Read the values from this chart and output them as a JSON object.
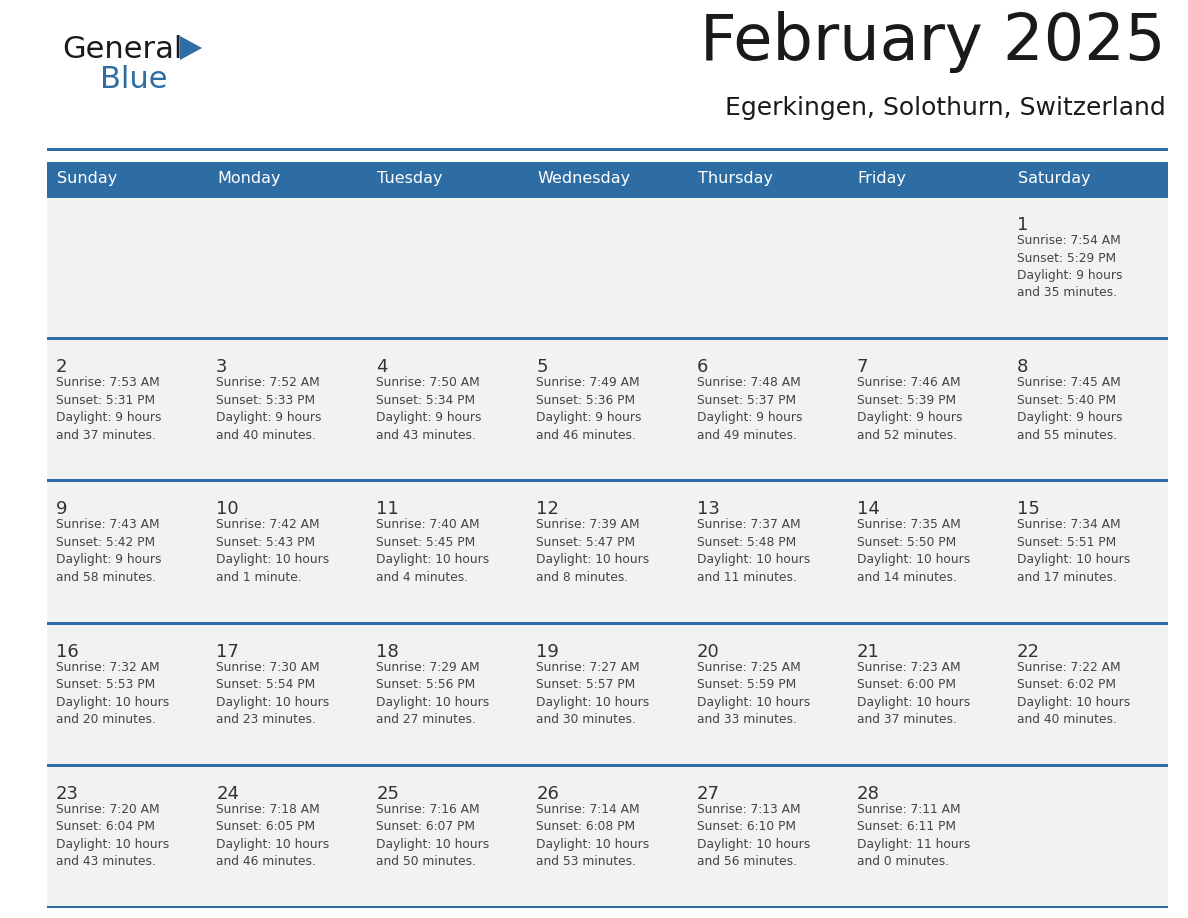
{
  "title": "February 2025",
  "subtitle": "Egerkingen, Solothurn, Switzerland",
  "header_bg": "#2E6DA4",
  "header_text": "#FFFFFF",
  "cell_bg": "#F2F2F2",
  "separator_color": "#2E6DA4",
  "text_color": "#444444",
  "days_of_week": [
    "Sunday",
    "Monday",
    "Tuesday",
    "Wednesday",
    "Thursday",
    "Friday",
    "Saturday"
  ],
  "weeks": [
    [
      {
        "day": "",
        "info": ""
      },
      {
        "day": "",
        "info": ""
      },
      {
        "day": "",
        "info": ""
      },
      {
        "day": "",
        "info": ""
      },
      {
        "day": "",
        "info": ""
      },
      {
        "day": "",
        "info": ""
      },
      {
        "day": "1",
        "info": "Sunrise: 7:54 AM\nSunset: 5:29 PM\nDaylight: 9 hours\nand 35 minutes."
      }
    ],
    [
      {
        "day": "2",
        "info": "Sunrise: 7:53 AM\nSunset: 5:31 PM\nDaylight: 9 hours\nand 37 minutes."
      },
      {
        "day": "3",
        "info": "Sunrise: 7:52 AM\nSunset: 5:33 PM\nDaylight: 9 hours\nand 40 minutes."
      },
      {
        "day": "4",
        "info": "Sunrise: 7:50 AM\nSunset: 5:34 PM\nDaylight: 9 hours\nand 43 minutes."
      },
      {
        "day": "5",
        "info": "Sunrise: 7:49 AM\nSunset: 5:36 PM\nDaylight: 9 hours\nand 46 minutes."
      },
      {
        "day": "6",
        "info": "Sunrise: 7:48 AM\nSunset: 5:37 PM\nDaylight: 9 hours\nand 49 minutes."
      },
      {
        "day": "7",
        "info": "Sunrise: 7:46 AM\nSunset: 5:39 PM\nDaylight: 9 hours\nand 52 minutes."
      },
      {
        "day": "8",
        "info": "Sunrise: 7:45 AM\nSunset: 5:40 PM\nDaylight: 9 hours\nand 55 minutes."
      }
    ],
    [
      {
        "day": "9",
        "info": "Sunrise: 7:43 AM\nSunset: 5:42 PM\nDaylight: 9 hours\nand 58 minutes."
      },
      {
        "day": "10",
        "info": "Sunrise: 7:42 AM\nSunset: 5:43 PM\nDaylight: 10 hours\nand 1 minute."
      },
      {
        "day": "11",
        "info": "Sunrise: 7:40 AM\nSunset: 5:45 PM\nDaylight: 10 hours\nand 4 minutes."
      },
      {
        "day": "12",
        "info": "Sunrise: 7:39 AM\nSunset: 5:47 PM\nDaylight: 10 hours\nand 8 minutes."
      },
      {
        "day": "13",
        "info": "Sunrise: 7:37 AM\nSunset: 5:48 PM\nDaylight: 10 hours\nand 11 minutes."
      },
      {
        "day": "14",
        "info": "Sunrise: 7:35 AM\nSunset: 5:50 PM\nDaylight: 10 hours\nand 14 minutes."
      },
      {
        "day": "15",
        "info": "Sunrise: 7:34 AM\nSunset: 5:51 PM\nDaylight: 10 hours\nand 17 minutes."
      }
    ],
    [
      {
        "day": "16",
        "info": "Sunrise: 7:32 AM\nSunset: 5:53 PM\nDaylight: 10 hours\nand 20 minutes."
      },
      {
        "day": "17",
        "info": "Sunrise: 7:30 AM\nSunset: 5:54 PM\nDaylight: 10 hours\nand 23 minutes."
      },
      {
        "day": "18",
        "info": "Sunrise: 7:29 AM\nSunset: 5:56 PM\nDaylight: 10 hours\nand 27 minutes."
      },
      {
        "day": "19",
        "info": "Sunrise: 7:27 AM\nSunset: 5:57 PM\nDaylight: 10 hours\nand 30 minutes."
      },
      {
        "day": "20",
        "info": "Sunrise: 7:25 AM\nSunset: 5:59 PM\nDaylight: 10 hours\nand 33 minutes."
      },
      {
        "day": "21",
        "info": "Sunrise: 7:23 AM\nSunset: 6:00 PM\nDaylight: 10 hours\nand 37 minutes."
      },
      {
        "day": "22",
        "info": "Sunrise: 7:22 AM\nSunset: 6:02 PM\nDaylight: 10 hours\nand 40 minutes."
      }
    ],
    [
      {
        "day": "23",
        "info": "Sunrise: 7:20 AM\nSunset: 6:04 PM\nDaylight: 10 hours\nand 43 minutes."
      },
      {
        "day": "24",
        "info": "Sunrise: 7:18 AM\nSunset: 6:05 PM\nDaylight: 10 hours\nand 46 minutes."
      },
      {
        "day": "25",
        "info": "Sunrise: 7:16 AM\nSunset: 6:07 PM\nDaylight: 10 hours\nand 50 minutes."
      },
      {
        "day": "26",
        "info": "Sunrise: 7:14 AM\nSunset: 6:08 PM\nDaylight: 10 hours\nand 53 minutes."
      },
      {
        "day": "27",
        "info": "Sunrise: 7:13 AM\nSunset: 6:10 PM\nDaylight: 10 hours\nand 56 minutes."
      },
      {
        "day": "28",
        "info": "Sunrise: 7:11 AM\nSunset: 6:11 PM\nDaylight: 11 hours\nand 0 minutes."
      },
      {
        "day": "",
        "info": ""
      }
    ]
  ]
}
